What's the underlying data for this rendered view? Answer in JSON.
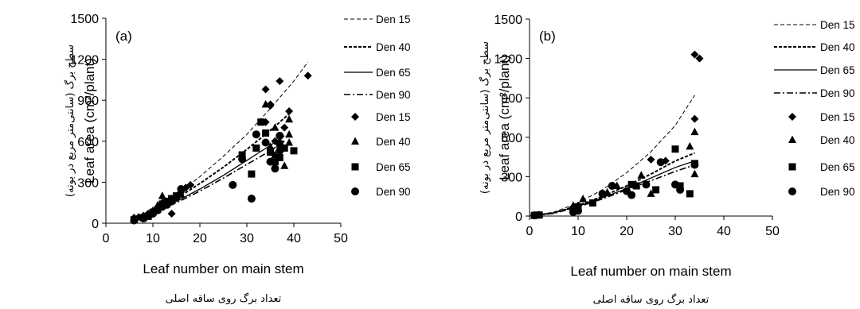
{
  "chart_data": [
    {
      "type": "scatter",
      "panel_label": "(a)",
      "xlabel": "Leaf number on main stem",
      "xlabel_fa": "تعداد برگ روی ساقه اصلی",
      "ylabel": "Leaf area (cm²/plant)",
      "ylabel_fa": "سطح برگ (سانتی‌متر مربع در بوته)",
      "xlim": [
        0,
        50
      ],
      "ylim": [
        0,
        1500
      ],
      "xticks": [
        "0",
        "10",
        "20",
        "30",
        "40",
        "50"
      ],
      "yticks": [
        "0",
        "300",
        "600",
        "900",
        "1200",
        "1500"
      ],
      "grid": false,
      "legend_position": "right",
      "fit_lines": [
        {
          "name": "Den 15",
          "style": "dashed-thin",
          "points": [
            [
              6,
              40
            ],
            [
              10,
              100
            ],
            [
              15,
              210
            ],
            [
              20,
              340
            ],
            [
              25,
              490
            ],
            [
              30,
              650
            ],
            [
              35,
              840
            ],
            [
              40,
              1040
            ],
            [
              43,
              1180
            ]
          ]
        },
        {
          "name": "Den 40",
          "style": "dashed-bold",
          "points": [
            [
              6,
              35
            ],
            [
              10,
              90
            ],
            [
              15,
              180
            ],
            [
              20,
              290
            ],
            [
              25,
              410
            ],
            [
              30,
              540
            ],
            [
              35,
              680
            ],
            [
              39,
              800
            ]
          ]
        },
        {
          "name": "Den 65",
          "style": "solid",
          "points": [
            [
              6,
              30
            ],
            [
              10,
              80
            ],
            [
              15,
              160
            ],
            [
              20,
              250
            ],
            [
              25,
              350
            ],
            [
              30,
              460
            ],
            [
              35,
              570
            ],
            [
              38,
              640
            ]
          ]
        },
        {
          "name": "Den 90",
          "style": "dashdot",
          "points": [
            [
              6,
              30
            ],
            [
              10,
              75
            ],
            [
              15,
              150
            ],
            [
              20,
              235
            ],
            [
              25,
              330
            ],
            [
              30,
              430
            ],
            [
              35,
              530
            ],
            [
              38,
              600
            ]
          ]
        }
      ],
      "series": [
        {
          "name": "Den 15",
          "marker": "diamond",
          "points": [
            [
              6,
              40
            ],
            [
              7,
              45
            ],
            [
              8,
              55
            ],
            [
              9,
              70
            ],
            [
              10,
              90
            ],
            [
              11,
              110
            ],
            [
              12,
              130
            ],
            [
              13,
              160
            ],
            [
              14,
              180
            ],
            [
              15,
              200
            ],
            [
              16,
              230
            ],
            [
              17,
              260
            ],
            [
              18,
              280
            ],
            [
              12,
              150
            ],
            [
              14,
              70
            ],
            [
              34,
              980
            ],
            [
              35,
              870
            ],
            [
              35,
              860
            ],
            [
              37,
              1040
            ],
            [
              43,
              1080
            ],
            [
              39,
              820
            ],
            [
              36,
              600
            ],
            [
              38,
              700
            ],
            [
              34,
              740
            ]
          ]
        },
        {
          "name": "Den 40",
          "marker": "triangle",
          "points": [
            [
              6,
              30
            ],
            [
              8,
              50
            ],
            [
              9,
              60
            ],
            [
              10,
              90
            ],
            [
              11,
              130
            ],
            [
              12,
              200
            ],
            [
              13,
              150
            ],
            [
              14,
              170
            ],
            [
              15,
              190
            ],
            [
              16,
              210
            ],
            [
              34,
              870
            ],
            [
              36,
              700
            ],
            [
              37,
              600
            ],
            [
              39,
              760
            ],
            [
              39,
              650
            ],
            [
              39,
              590
            ],
            [
              36,
              500
            ],
            [
              38,
              420
            ],
            [
              35,
              560
            ]
          ]
        },
        {
          "name": "Den 65",
          "marker": "square",
          "points": [
            [
              6,
              25
            ],
            [
              8,
              40
            ],
            [
              9,
              50
            ],
            [
              10,
              80
            ],
            [
              11,
              100
            ],
            [
              12,
              140
            ],
            [
              13,
              160
            ],
            [
              14,
              180
            ],
            [
              15,
              200
            ],
            [
              29,
              500
            ],
            [
              31,
              360
            ],
            [
              32,
              550
            ],
            [
              33,
              740
            ],
            [
              34,
              660
            ],
            [
              35,
              520
            ],
            [
              36,
              450
            ],
            [
              37,
              580
            ],
            [
              38,
              550
            ],
            [
              40,
              530
            ],
            [
              37,
              480
            ]
          ]
        },
        {
          "name": "Den 90",
          "marker": "circle",
          "points": [
            [
              6,
              20
            ],
            [
              8,
              35
            ],
            [
              9,
              55
            ],
            [
              10,
              70
            ],
            [
              11,
              95
            ],
            [
              12,
              120
            ],
            [
              13,
              135
            ],
            [
              14,
              160
            ],
            [
              15,
              190
            ],
            [
              16,
              250
            ],
            [
              27,
              280
            ],
            [
              29,
              470
            ],
            [
              31,
              180
            ],
            [
              32,
              650
            ],
            [
              34,
              590
            ],
            [
              35,
              450
            ],
            [
              36,
              400
            ],
            [
              37,
              640
            ],
            [
              37,
              530
            ]
          ]
        }
      ]
    },
    {
      "type": "scatter",
      "panel_label": "(b)",
      "xlabel": "Leaf number on main stem",
      "xlabel_fa": "تعداد برگ روی ساقه اصلی",
      "ylabel": "Leaf area (cm²/plant)",
      "ylabel_fa": "سطح برگ (سانتی‌متر مربع در بوته)",
      "xlim": [
        0,
        50
      ],
      "ylim": [
        0,
        1500
      ],
      "xticks": [
        "0",
        "10",
        "20",
        "30",
        "40",
        "50"
      ],
      "yticks": [
        "0",
        "300",
        "600",
        "900",
        "1200",
        "1500"
      ],
      "grid": false,
      "legend_position": "right",
      "fit_lines": [
        {
          "name": "Den 15",
          "style": "dashed-thin",
          "points": [
            [
              1,
              5
            ],
            [
              5,
              30
            ],
            [
              10,
              100
            ],
            [
              15,
              200
            ],
            [
              20,
              330
            ],
            [
              25,
              490
            ],
            [
              30,
              690
            ],
            [
              34,
              920
            ]
          ]
        },
        {
          "name": "Den 40",
          "style": "dashed-bold",
          "points": [
            [
              1,
              5
            ],
            [
              5,
              25
            ],
            [
              10,
              80
            ],
            [
              15,
              150
            ],
            [
              20,
              230
            ],
            [
              25,
              320
            ],
            [
              30,
              420
            ],
            [
              34,
              480
            ]
          ]
        },
        {
          "name": "Den 65",
          "style": "solid",
          "points": [
            [
              1,
              5
            ],
            [
              5,
              25
            ],
            [
              10,
              75
            ],
            [
              15,
              140
            ],
            [
              20,
              210
            ],
            [
              25,
              290
            ],
            [
              30,
              370
            ],
            [
              34,
              420
            ]
          ]
        },
        {
          "name": "Den 90",
          "style": "dashdot",
          "points": [
            [
              1,
              5
            ],
            [
              5,
              20
            ],
            [
              10,
              70
            ],
            [
              15,
              130
            ],
            [
              20,
              200
            ],
            [
              25,
              270
            ],
            [
              30,
              340
            ],
            [
              34,
              390
            ]
          ]
        }
      ],
      "series": [
        {
          "name": "Den 15",
          "marker": "diamond",
          "points": [
            [
              1,
              5
            ],
            [
              2,
              10
            ],
            [
              9,
              60
            ],
            [
              10,
              80
            ],
            [
              25,
              430
            ],
            [
              28,
              420
            ],
            [
              34,
              1230
            ],
            [
              35,
              1200
            ],
            [
              34,
              740
            ]
          ]
        },
        {
          "name": "Den 40",
          "marker": "triangle",
          "points": [
            [
              1,
              5
            ],
            [
              9,
              80
            ],
            [
              11,
              130
            ],
            [
              16,
              180
            ],
            [
              18,
              230
            ],
            [
              23,
              310
            ],
            [
              25,
              170
            ],
            [
              33,
              530
            ],
            [
              34,
              640
            ],
            [
              34,
              320
            ]
          ]
        },
        {
          "name": "Den 65",
          "marker": "square",
          "points": [
            [
              1,
              5
            ],
            [
              2,
              8
            ],
            [
              9,
              50
            ],
            [
              10,
              70
            ],
            [
              13,
              100
            ],
            [
              21,
              240
            ],
            [
              22,
              230
            ],
            [
              26,
              200
            ],
            [
              30,
              510
            ],
            [
              31,
              230
            ],
            [
              33,
              170
            ],
            [
              34,
              400
            ]
          ]
        },
        {
          "name": "Den 90",
          "marker": "circle",
          "points": [
            [
              1,
              5
            ],
            [
              9,
              30
            ],
            [
              10,
              40
            ],
            [
              15,
              170
            ],
            [
              17,
              230
            ],
            [
              20,
              190
            ],
            [
              21,
              160
            ],
            [
              24,
              240
            ],
            [
              27,
              410
            ],
            [
              30,
              240
            ],
            [
              31,
              200
            ],
            [
              34,
              390
            ]
          ]
        }
      ]
    }
  ]
}
